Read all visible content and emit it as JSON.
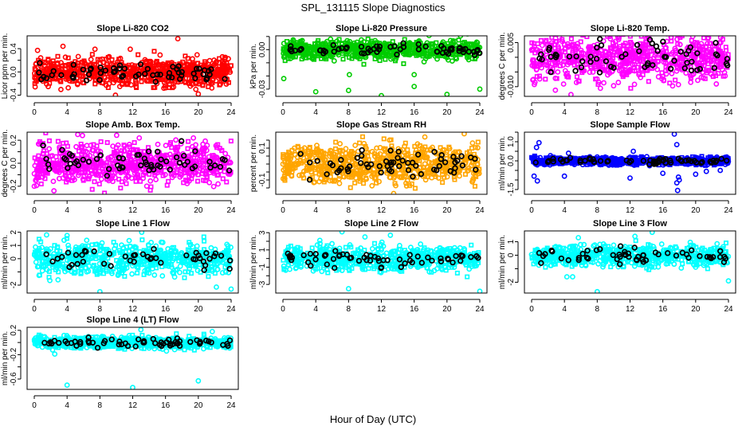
{
  "chart_data": {
    "type": "scatter",
    "title": "SPL_131115  Slope Diagnostics",
    "xlabel": "Hour of Day (UTC)",
    "x_ticks": [
      0,
      4,
      8,
      12,
      16,
      20,
      24
    ],
    "xlim": [
      0,
      24
    ],
    "grid": false,
    "legend": "none",
    "panels": [
      {
        "title": "Slope Li-820 CO2",
        "ylabel": "Licor ppm per min.",
        "color": "#ff0000",
        "ylim": [
          -0.42,
          0.62
        ],
        "y_ticks": [
          -0.4,
          -0.2,
          0.0,
          0.2,
          0.4
        ],
        "y_tick_labels": [
          "-0.4",
          "",
          "0.0",
          "",
          "0.4"
        ],
        "spread": 0.12,
        "n_points": 700,
        "highlight_points": 60,
        "outliers": [
          [
            17.5,
            0.57
          ],
          [
            3.5,
            0.44
          ],
          [
            0.4,
            0.37
          ],
          [
            7.4,
            0.39
          ],
          [
            11.7,
            0.39
          ],
          [
            9.9,
            -0.4
          ],
          [
            20.0,
            -0.38
          ],
          [
            12.4,
            -0.25
          ],
          [
            15.8,
            -0.28
          ],
          [
            19.7,
            -0.3
          ]
        ]
      },
      {
        "title": "Slope Li-820 Pressure",
        "ylabel": "kPa per min.",
        "color": "#00cc00",
        "ylim": [
          -0.0355,
          0.0105
        ],
        "y_ticks": [
          -0.03,
          -0.02,
          -0.01,
          0.0,
          0.01
        ],
        "y_tick_labels": [
          "-0.03",
          "",
          "",
          "0.00",
          ""
        ],
        "spread": 0.0035,
        "n_points": 700,
        "highlight_points": 60,
        "outliers": [
          [
            0.1,
            -0.022
          ],
          [
            4.0,
            -0.032
          ],
          [
            8.0,
            -0.031
          ],
          [
            8.1,
            -0.019
          ],
          [
            12.0,
            -0.035
          ],
          [
            16.0,
            -0.019
          ],
          [
            16.0,
            -0.028
          ],
          [
            20.0,
            -0.034
          ],
          [
            24.0,
            -0.03
          ],
          [
            22.5,
            0.012
          ],
          [
            5.8,
            0.008
          ]
        ]
      },
      {
        "title": "Slope Li-820 Temp.",
        "ylabel": "degrees C per min.",
        "color": "#ff00ff",
        "ylim": [
          -0.0133,
          0.0073
        ],
        "y_ticks": [
          -0.01,
          -0.005,
          0.0,
          0.005
        ],
        "y_tick_labels": [
          "-0.010",
          "",
          "",
          "0.005"
        ],
        "spread": 0.004,
        "n_points": 700,
        "highlight_points": 60,
        "outliers": [
          [
            4.8,
            -0.0127
          ],
          [
            3.4,
            0.0068
          ],
          [
            9.6,
            0.0063
          ],
          [
            17.0,
            0.0068
          ],
          [
            2.9,
            -0.0112
          ],
          [
            8.8,
            -0.0087
          ],
          [
            17.9,
            -0.0093
          ]
        ]
      },
      {
        "title": "Slope Amb. Box Temp.",
        "ylabel": "degrees C per min.",
        "color": "#ff00ff",
        "ylim": [
          -0.27,
          0.27
        ],
        "y_ticks": [
          -0.2,
          -0.1,
          0.0,
          0.1,
          0.2
        ],
        "y_tick_labels": [
          "-0.2",
          "",
          "0.0",
          "",
          "0.2"
        ],
        "spread": 0.09,
        "n_points": 700,
        "highlight_points": 60,
        "outliers": [
          [
            2.4,
            -0.24
          ],
          [
            5.3,
            0.25
          ],
          [
            0.0,
            -0.2
          ],
          [
            19.4,
            0.22
          ],
          [
            12.8,
            0.22
          ]
        ]
      },
      {
        "title": "Slope Gas Stream RH",
        "ylabel": "percent per min.",
        "color": "#ffa500",
        "ylim": [
          -0.19,
          0.2
        ],
        "y_ticks": [
          -0.15,
          -0.1,
          -0.05,
          0.0,
          0.05,
          0.1,
          0.15
        ],
        "y_tick_labels": [
          "",
          "-0.1",
          "",
          "",
          "",
          "0.1",
          ""
        ],
        "spread": 0.06,
        "n_points": 700,
        "highlight_points": 60,
        "outliers": [
          [
            13.5,
            -0.185
          ],
          [
            22.1,
            0.19
          ],
          [
            17.3,
            0.17
          ],
          [
            13.0,
            0.15
          ],
          [
            0.0,
            0.0
          ]
        ]
      },
      {
        "title": "Slope Sample Flow",
        "ylabel": "ml/min per min.",
        "color": "#0000ff",
        "ylim": [
          -1.75,
          1.5
        ],
        "y_ticks": [
          -1.5,
          -1.0,
          -0.5,
          0.0,
          0.5,
          1.0,
          1.5
        ],
        "y_tick_labels": [
          "-1.5",
          "",
          "",
          "0.0",
          "",
          "1.0",
          ""
        ],
        "spread": 0.1,
        "n_points": 700,
        "highlight_points": 60,
        "outliers": [
          [
            17.4,
            1.4
          ],
          [
            0.9,
            0.95
          ],
          [
            0.6,
            0.7
          ],
          [
            17.7,
            0.85
          ],
          [
            0.3,
            -0.8
          ],
          [
            0.7,
            -1.05
          ],
          [
            4.0,
            -0.8
          ],
          [
            12.0,
            -0.9
          ],
          [
            16.0,
            -0.65
          ],
          [
            17.7,
            -1.15
          ],
          [
            17.8,
            -1.55
          ],
          [
            17.9,
            -0.85
          ],
          [
            18.0,
            -1.0
          ],
          [
            20.0,
            -0.7
          ],
          [
            21.3,
            -0.55
          ],
          [
            23.0,
            -0.5
          ],
          [
            12.4,
            0.5
          ],
          [
            4.5,
            0.4
          ]
        ]
      },
      {
        "title": "Slope Line 1 Flow",
        "ylabel": "ml/min per min.",
        "color": "#00ffff",
        "ylim": [
          -2.6,
          2.1
        ],
        "y_ticks": [
          -2,
          -1,
          0,
          1,
          2
        ],
        "y_tick_labels": [
          "-2",
          "",
          "0",
          "1",
          "2"
        ],
        "spread": 0.6,
        "n_points": 600,
        "highlight_points": 45,
        "outliers": [
          [
            8.0,
            -2.5
          ],
          [
            13.1,
            2.0
          ],
          [
            24.0,
            -2.3
          ],
          [
            22.2,
            -2.15
          ],
          [
            1.5,
            1.8
          ],
          [
            4.0,
            1.75
          ],
          [
            1.9,
            -1.65
          ],
          [
            2.9,
            -1.6
          ]
        ]
      },
      {
        "title": "Slope Line 2 Flow",
        "ylabel": "ml/min per min.",
        "color": "#00ffff",
        "ylim": [
          -4.0,
          3.2
        ],
        "y_ticks": [
          -3,
          -2,
          -1,
          0,
          1,
          2,
          3
        ],
        "y_tick_labels": [
          "-3",
          "",
          "-1",
          "",
          "1",
          "",
          "3"
        ],
        "spread": 0.7,
        "n_points": 600,
        "highlight_points": 60,
        "outliers": [
          [
            7.2,
            3.1
          ],
          [
            8.0,
            -3.5
          ],
          [
            24.0,
            -3.8
          ],
          [
            13.1,
            2.7
          ],
          [
            10.0,
            2.5
          ],
          [
            4.5,
            2.1
          ]
        ]
      },
      {
        "title": "Slope Line 3 Flow",
        "ylabel": "ml/min per min.",
        "color": "#00ffff",
        "ylim": [
          -2.8,
          1.8
        ],
        "y_ticks": [
          -2,
          -1,
          0,
          1
        ],
        "y_tick_labels": [
          "-2",
          "",
          "0",
          "1"
        ],
        "spread": 0.4,
        "n_points": 600,
        "highlight_points": 55,
        "outliers": [
          [
            8.0,
            -2.7
          ],
          [
            14.7,
            1.7
          ],
          [
            24.0,
            -1.9
          ],
          [
            5.0,
            -1.6
          ],
          [
            4.3,
            -1.6
          ],
          [
            12.6,
            1.4
          ],
          [
            5.7,
            1.3
          ]
        ]
      },
      {
        "title": "Slope Line 4 (LT) Flow",
        "ylabel": "ml/min per min.",
        "color": "#00ffff",
        "ylim": [
          -0.77,
          0.25
        ],
        "y_ticks": [
          -0.6,
          -0.4,
          -0.2,
          0.0,
          0.2
        ],
        "y_tick_labels": [
          "-0.6",
          "",
          "-0.2",
          "",
          "0.2"
        ],
        "spread": 0.05,
        "n_points": 700,
        "highlight_points": 60,
        "outliers": [
          [
            4.0,
            -0.7
          ],
          [
            12.0,
            -0.74
          ],
          [
            20.0,
            -0.63
          ],
          [
            13.0,
            0.21
          ],
          [
            2.5,
            -0.19
          ],
          [
            21.7,
            0.18
          ]
        ]
      }
    ]
  }
}
